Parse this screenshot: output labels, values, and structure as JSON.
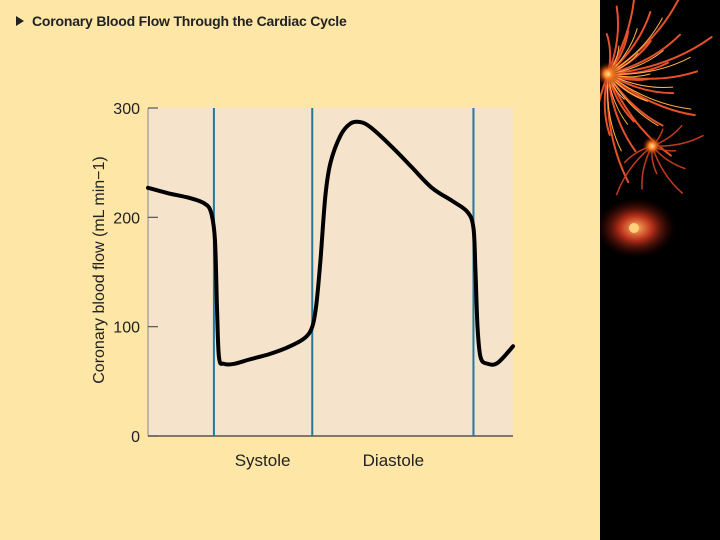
{
  "title": "Coronary Blood Flow Through the Cardiac Cycle",
  "colors": {
    "slide_bg": "#fde6a6",
    "plot_bg": "#f6e3cc",
    "phase_line": "#1f7a9c",
    "curve": "#000000",
    "deco_bg": "#000000"
  },
  "decor": {
    "icon": "fireworks-decoration-icon"
  },
  "chart_data": {
    "type": "line",
    "title": "Coronary Blood Flow Through the Cardiac Cycle",
    "ylabel": "Coronary blood flow (mL min−1)",
    "xlabel": "",
    "ylim": [
      0,
      300
    ],
    "yticks": [
      0,
      100,
      200,
      300
    ],
    "xlim": [
      0,
      36
    ],
    "grid": false,
    "legend": "none",
    "phase_boundaries": [
      6.5,
      16.2,
      32.1
    ],
    "phase_labels": [
      {
        "label": "Systole",
        "x": 11.3
      },
      {
        "label": "Diastole",
        "x": 24.2
      }
    ],
    "series": [
      {
        "values": [
          [
            0,
            227
          ],
          [
            2,
            222
          ],
          [
            4,
            218
          ],
          [
            5.5,
            213
          ],
          [
            6.2,
            205
          ],
          [
            6.6,
            180
          ],
          [
            6.8,
            120
          ],
          [
            7.0,
            72
          ],
          [
            7.5,
            66
          ],
          [
            8.5,
            66
          ],
          [
            10,
            70
          ],
          [
            12,
            75
          ],
          [
            14,
            82
          ],
          [
            15.5,
            90
          ],
          [
            16.2,
            100
          ],
          [
            16.6,
            120
          ],
          [
            17,
            160
          ],
          [
            17.5,
            220
          ],
          [
            18,
            250
          ],
          [
            19,
            275
          ],
          [
            20,
            286
          ],
          [
            21,
            287
          ],
          [
            22,
            282
          ],
          [
            24,
            265
          ],
          [
            26,
            246
          ],
          [
            28,
            227
          ],
          [
            30,
            215
          ],
          [
            31.5,
            205
          ],
          [
            32.1,
            190
          ],
          [
            32.3,
            150
          ],
          [
            32.5,
            100
          ],
          [
            32.8,
            72
          ],
          [
            33.5,
            66
          ],
          [
            34.5,
            67
          ],
          [
            36,
            82
          ]
        ]
      }
    ]
  }
}
